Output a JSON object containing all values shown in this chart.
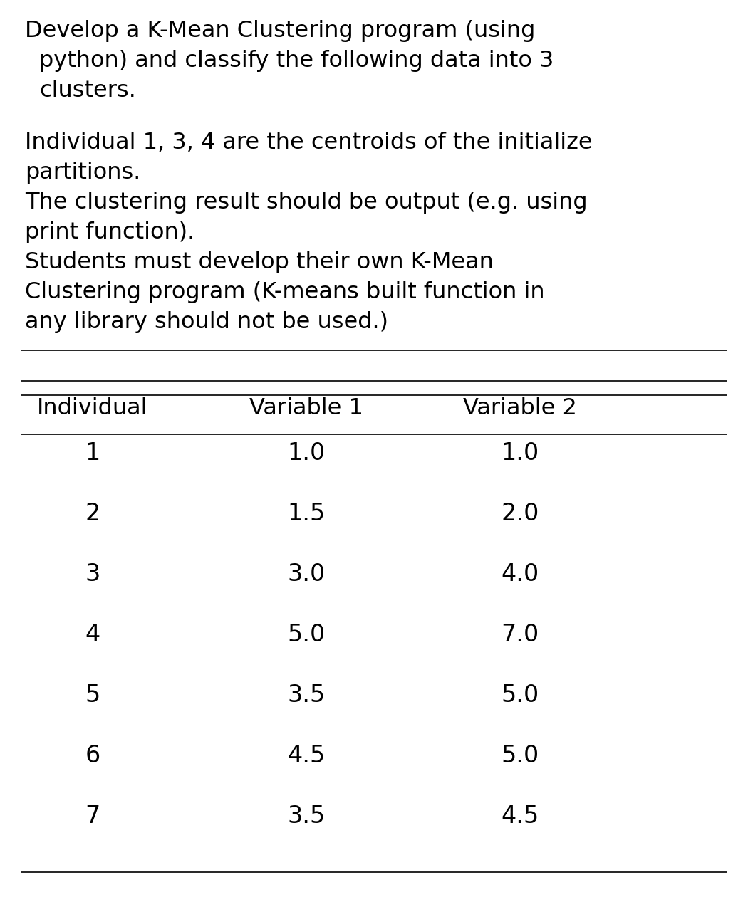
{
  "title_lines": [
    "Develop a K-Mean Clustering program (using",
    "python) and classify the following data into 3",
    "clusters."
  ],
  "body_lines": [
    "Individual 1, 3, 4 are the centroids of the initialize",
    "partitions.",
    "The clustering result should be output (e.g. using",
    "print function).",
    "Students must develop their own K-Mean",
    "Clustering program (K-means built function in",
    "any library should not be used.)"
  ],
  "table_headers": [
    "Individual",
    "Variable 1",
    "Variable 2"
  ],
  "table_data": [
    [
      "1",
      "1.0",
      "1.0"
    ],
    [
      "2",
      "1.5",
      "2.0"
    ],
    [
      "3",
      "3.0",
      "4.0"
    ],
    [
      "4",
      "5.0",
      "7.0"
    ],
    [
      "5",
      "3.5",
      "5.0"
    ],
    [
      "6",
      "4.5",
      "5.0"
    ],
    [
      "7",
      "3.5",
      "4.5"
    ]
  ],
  "bg_color": "#ffffff",
  "text_color": "#000000",
  "title_fontsize": 23,
  "body_fontsize": 23,
  "table_header_fontsize": 23,
  "table_data_fontsize": 24,
  "fig_width": 10.5,
  "fig_height": 12.81,
  "dpi": 100
}
